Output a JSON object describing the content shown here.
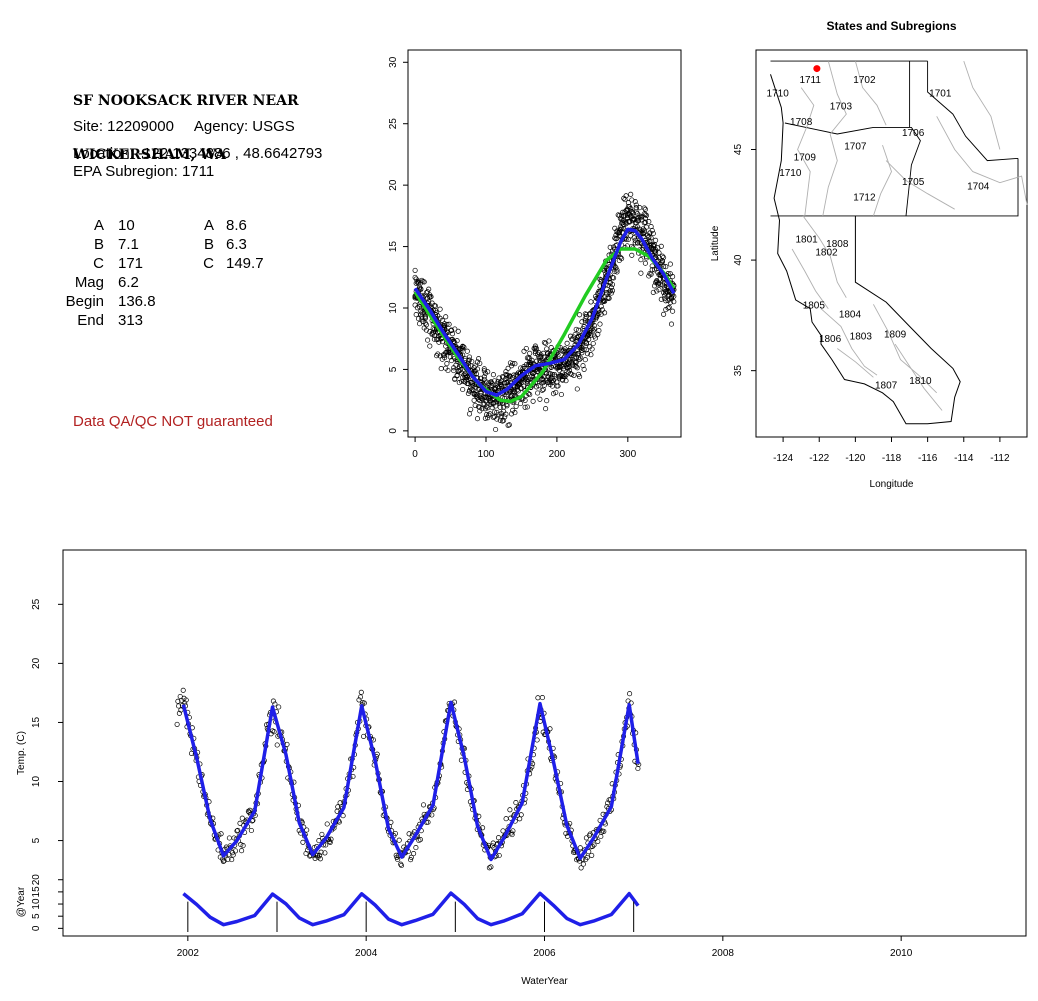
{
  "site": {
    "title_line1": "SF NOOKSACK RIVER NEAR",
    "title_line2": "WICKERSHAM, WA",
    "site_line": "Site: 12209000     Agency: USGS",
    "location_line": "Location: -122.1334886 , 48.6642793",
    "subregion_line": "EPA Subregion: 1711",
    "disclaimer": "Data QA/QC NOT guaranteed",
    "params_left": [
      {
        "label": "A",
        "value": "10"
      },
      {
        "label": "B",
        "value": "7.1"
      },
      {
        "label": "C",
        "value": "171"
      },
      {
        "label": "Mag",
        "value": "6.2"
      },
      {
        "label": "Begin",
        "value": "136.8"
      },
      {
        "label": "End",
        "value": "313"
      }
    ],
    "params_right": [
      {
        "label": "A",
        "value": "8.6"
      },
      {
        "label": "B",
        "value": "6.3"
      },
      {
        "label": "C",
        "value": "149.7"
      }
    ]
  },
  "colors": {
    "points": "#000000",
    "fit_blue": "#1f1fe8",
    "fit_green": "#22cc22",
    "disclaimer": "#b22222",
    "site_dot": "#ff0000",
    "boundary_grey": "#b0b0b0"
  },
  "chart_data": [
    {
      "type": "scatter",
      "title": "",
      "xlabel": "",
      "ylabel": "",
      "xlim": [
        -10,
        375
      ],
      "ylim": [
        -0.5,
        31
      ],
      "xticks": [
        0,
        100,
        200,
        300
      ],
      "yticks": [
        0,
        5,
        10,
        15,
        20,
        25,
        30
      ],
      "points_description": "daily temperature observations by day of water year, 2002-2007",
      "series": [
        {
          "name": "",
          "color": "#22cc22",
          "x": [
            0,
            30,
            60,
            90,
            120,
            135,
            150,
            180,
            210,
            240,
            270,
            290,
            310,
            330,
            350,
            365
          ],
          "y": [
            11.3,
            8.6,
            6.0,
            3.8,
            2.5,
            2.4,
            2.8,
            4.8,
            7.8,
            11.0,
            13.9,
            14.8,
            14.8,
            14.2,
            12.9,
            11.6
          ]
        },
        {
          "name": "",
          "color": "#1f1fe8",
          "x": [
            0,
            20,
            40,
            60,
            80,
            100,
            115,
            130,
            150,
            170,
            190,
            210,
            230,
            250,
            270,
            290,
            300,
            310,
            320,
            335,
            350,
            365
          ],
          "y": [
            11.6,
            9.9,
            8.0,
            6.3,
            4.5,
            3.2,
            2.9,
            3.4,
            4.5,
            5.3,
            5.5,
            5.8,
            7.0,
            9.2,
            12.4,
            15.4,
            16.4,
            16.3,
            15.6,
            14.0,
            12.8,
            11.2
          ]
        }
      ]
    },
    {
      "type": "map",
      "title": "States and Subregions",
      "xlabel": "Longitude",
      "ylabel": "Latitude",
      "xlim": [
        -125.5,
        -110.5
      ],
      "ylim": [
        32,
        49.5
      ],
      "xticks": [
        -124,
        -122,
        -120,
        -118,
        -116,
        -114,
        -112
      ],
      "yticks": [
        35,
        40,
        45
      ],
      "site": {
        "lon": -122.13,
        "lat": 48.66
      },
      "regions": [
        {
          "label": "1702",
          "lon": -119.5,
          "lat": 48.0
        },
        {
          "label": "1701",
          "lon": -115.3,
          "lat": 47.4
        },
        {
          "label": "1711",
          "lon": -122.5,
          "lat": 48.0
        },
        {
          "label": "1710",
          "lon": -124.3,
          "lat": 47.4
        },
        {
          "label": "1703",
          "lon": -120.8,
          "lat": 46.8
        },
        {
          "label": "1708",
          "lon": -123.0,
          "lat": 46.1
        },
        {
          "label": "1706",
          "lon": -116.8,
          "lat": 45.6
        },
        {
          "label": "1707",
          "lon": -120.0,
          "lat": 45.0
        },
        {
          "label": "1709",
          "lon": -122.8,
          "lat": 44.5
        },
        {
          "label": "1710",
          "lon": -123.6,
          "lat": 43.8
        },
        {
          "label": "1705",
          "lon": -116.8,
          "lat": 43.4
        },
        {
          "label": "1704",
          "lon": -113.2,
          "lat": 43.2
        },
        {
          "label": "1712",
          "lon": -119.5,
          "lat": 42.7
        },
        {
          "label": "1801",
          "lon": -122.7,
          "lat": 40.8
        },
        {
          "label": "1808",
          "lon": -121.0,
          "lat": 40.6
        },
        {
          "label": "1802",
          "lon": -121.6,
          "lat": 40.2
        },
        {
          "label": "1805",
          "lon": -122.3,
          "lat": 37.8
        },
        {
          "label": "1804",
          "lon": -120.3,
          "lat": 37.4
        },
        {
          "label": "1806",
          "lon": -121.4,
          "lat": 36.3
        },
        {
          "label": "1803",
          "lon": -119.7,
          "lat": 36.4
        },
        {
          "label": "1809",
          "lon": -117.8,
          "lat": 36.5
        },
        {
          "label": "1807",
          "lon": -118.3,
          "lat": 34.2
        },
        {
          "label": "1810",
          "lon": -116.4,
          "lat": 34.4
        }
      ]
    },
    {
      "type": "scatter",
      "title": "",
      "xlabel": "WaterYear",
      "ylabel": "Temp. (C)",
      "ylabel2": "@Year",
      "xlim": [
        2000.6,
        2011.4
      ],
      "ylim": [
        2.0,
        29.6
      ],
      "ylim2": [
        -1.5,
        24
      ],
      "xticks": [
        2002,
        2004,
        2006,
        2008,
        2010
      ],
      "yticks": [
        5,
        10,
        15,
        20,
        25
      ],
      "yticks2": [
        0,
        5,
        10,
        15,
        20
      ],
      "points_description": "daily temperature observations, water years 2002-2007",
      "fit_color": "#1f1fe8",
      "year_markers": [
        2002,
        2003,
        2004,
        2005,
        2006,
        2007
      ],
      "series": [
        {
          "name": "",
          "color": "#1f1fe8",
          "x": [
            2001.95,
            2002.1,
            2002.25,
            2002.4,
            2002.55,
            2002.75,
            2002.95,
            2003.1,
            2003.25,
            2003.4,
            2003.55,
            2003.75,
            2003.95,
            2004.1,
            2004.25,
            2004.4,
            2004.55,
            2004.75,
            2004.95,
            2005.1,
            2005.25,
            2005.4,
            2005.55,
            2005.75,
            2005.95,
            2006.1,
            2006.25,
            2006.4,
            2006.55,
            2006.75,
            2006.95,
            2007.05
          ],
          "y": [
            16.5,
            12.0,
            6.8,
            3.7,
            5.0,
            7.5,
            16.3,
            12.3,
            6.5,
            3.8,
            5.2,
            7.8,
            16.4,
            11.8,
            6.0,
            3.6,
            5.4,
            8.0,
            16.7,
            12.1,
            6.2,
            3.4,
            5.3,
            8.2,
            16.6,
            11.7,
            6.3,
            3.5,
            5.2,
            7.9,
            16.5,
            11.5
          ]
        }
      ]
    }
  ]
}
